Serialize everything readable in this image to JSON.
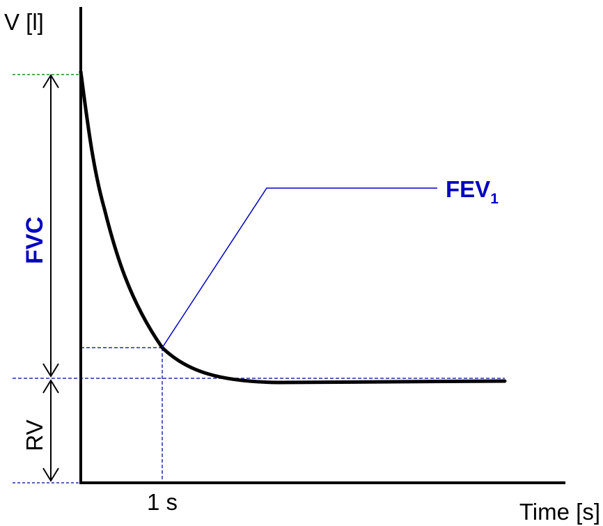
{
  "y_axis_label": "V [l]",
  "x_axis_label": "Time [s]",
  "x_tick_label": "1 s",
  "fvc_label": "FVC",
  "rv_label": "RV",
  "fev1": {
    "label": "FEV",
    "subscript": "1"
  },
  "colors": {
    "axis": "#000000",
    "curve": "#000000",
    "annotation": "#0000c0",
    "fvc_top_guide": "#1e8a1e",
    "guides": "#1f2f9f",
    "label_text": "#000000"
  }
}
